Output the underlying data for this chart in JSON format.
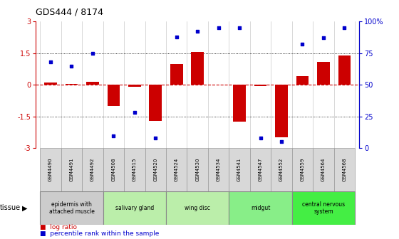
{
  "title": "GDS444 / 8174",
  "samples": [
    "GSM4490",
    "GSM4491",
    "GSM4492",
    "GSM4508",
    "GSM4515",
    "GSM4520",
    "GSM4524",
    "GSM4530",
    "GSM4534",
    "GSM4541",
    "GSM4547",
    "GSM4552",
    "GSM4559",
    "GSM4564",
    "GSM4568"
  ],
  "log_ratio": [
    0.1,
    0.05,
    0.15,
    -1.0,
    -0.08,
    -1.7,
    1.0,
    1.55,
    0.0,
    -1.75,
    -0.05,
    -2.5,
    0.4,
    1.1,
    1.4
  ],
  "percentile": [
    68,
    65,
    75,
    10,
    28,
    8,
    88,
    92,
    95,
    95,
    8,
    5,
    82,
    87,
    95
  ],
  "ylim": [
    -3,
    3
  ],
  "y2lim": [
    0,
    100
  ],
  "yticks": [
    -3,
    -1.5,
    0,
    1.5,
    3
  ],
  "y2ticks": [
    0,
    25,
    50,
    75,
    100
  ],
  "bar_color": "#cc0000",
  "dot_color": "#0000cc",
  "hline_color": "#cc0000",
  "tissue_groups": [
    {
      "label": "epidermis with\nattached muscle",
      "start": 0,
      "end": 3
    },
    {
      "label": "salivary gland",
      "start": 3,
      "end": 6
    },
    {
      "label": "wing disc",
      "start": 6,
      "end": 9
    },
    {
      "label": "midgut",
      "start": 9,
      "end": 12
    },
    {
      "label": "central nervous\nsystem",
      "start": 12,
      "end": 15
    }
  ],
  "group_colors": [
    "#cccccc",
    "#bbeeaa",
    "#bbeeaa",
    "#88ee88",
    "#44ee44"
  ],
  "sample_bg": "#d8d8d8",
  "sample_edge": "#999999",
  "fig_bg": "#ffffff"
}
